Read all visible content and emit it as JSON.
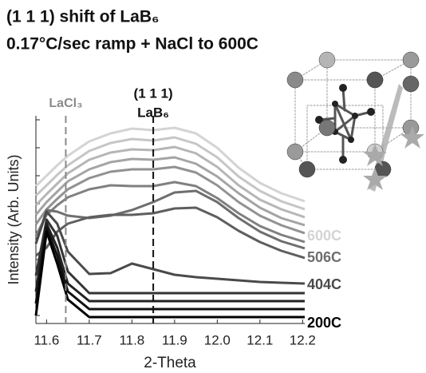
{
  "chart_data": {
    "type": "line",
    "title": [
      "(1 1 1) shift of LaB₆",
      "0.17°C/sec ramp + NaCl to 600C"
    ],
    "xlabel": "2-Theta",
    "ylabel": "Intensity (Arb. Units)",
    "x": [
      11.575,
      11.6,
      11.625,
      11.65,
      11.7,
      11.75,
      11.8,
      11.85,
      11.9,
      11.95,
      12.0,
      12.05,
      12.1,
      12.15,
      12.205
    ],
    "xlim": [
      11.575,
      12.205
    ],
    "xticks": [
      11.6,
      11.7,
      11.8,
      11.9,
      {
        "value": 12.0,
        "label": "12.0"
      },
      12.1,
      12.2
    ],
    "ylim": [
      0,
      26
    ],
    "yticks": [
      1,
      4.5,
      8,
      11.5,
      15,
      18.5,
      22,
      25.5
    ],
    "annotations": [
      {
        "x": 11.645,
        "label": "LaCl₃",
        "color": "#8a8a8a"
      },
      {
        "x": 11.85,
        "label": [
          "(1 1 1)",
          "LaB₆"
        ],
        "color": "#111111"
      }
    ],
    "series": [
      {
        "name": "600C",
        "color": "#d4d4d4",
        "values": [
          17.2,
          18.5,
          19.8,
          21,
          22.8,
          23.8,
          24.4,
          24.2,
          24.5,
          23.8,
          22,
          19.5,
          17.6,
          16.3,
          15.3
        ]
      },
      {
        "color": "#c6c6c6",
        "values": [
          16,
          17.3,
          18.6,
          19.8,
          21.6,
          22.6,
          23.1,
          22.9,
          23.3,
          22.5,
          20.8,
          18.4,
          16.6,
          15.3,
          14.3
        ]
      },
      {
        "color": "#b6b6b6",
        "values": [
          14.8,
          16.2,
          17.5,
          18.8,
          20.5,
          21.4,
          21.8,
          21.7,
          22.1,
          21.3,
          19.6,
          17.3,
          15.5,
          14.3,
          13.3
        ]
      },
      {
        "color": "#a4a4a4",
        "values": [
          13.6,
          15.2,
          16.5,
          17.8,
          19.3,
          20.2,
          20.6,
          20.5,
          20.8,
          20,
          18.4,
          16.3,
          14.5,
          13.2,
          12.3
        ]
      },
      {
        "color": "#929292",
        "values": [
          12.4,
          14.3,
          15.6,
          16.8,
          18.2,
          19,
          19.3,
          19.3,
          19.6,
          18.9,
          17.3,
          15.2,
          13.5,
          12.3,
          11.3
        ]
      },
      {
        "color": "#808080",
        "values": [
          11,
          13.6,
          14.8,
          15.8,
          16.8,
          17.3,
          17.2,
          17.2,
          17.7,
          17.2,
          15.7,
          13.8,
          12.2,
          11.1,
          10.2
        ]
      },
      {
        "name": "506C",
        "color": "#6e6e6e",
        "values": [
          10,
          14.2,
          14,
          13.5,
          13.2,
          13.5,
          14.2,
          15.2,
          16.4,
          16.6,
          15.2,
          13.2,
          11.5,
          10.3,
          9.4
        ]
      },
      {
        "color": "#5e5e5e",
        "values": [
          8.5,
          9.5,
          11.5,
          12.5,
          13.3,
          13.6,
          13.6,
          13.8,
          14.4,
          14.5,
          13.3,
          11.6,
          10.2,
          9.1,
          8.2
        ]
      },
      {
        "name": "404C",
        "color": "#4a4a4a",
        "values": [
          10,
          14,
          12.5,
          9,
          6.2,
          6.3,
          7.5,
          6.8,
          6.1,
          5.8,
          5.6,
          5.4,
          5.2,
          5.1,
          5.0
        ]
      },
      {
        "color": "#333333",
        "values": [
          6,
          13,
          11,
          6.5,
          3.8,
          3.8,
          3.8,
          3.8,
          3.8,
          3.8,
          3.8,
          3.8,
          3.8,
          3.8,
          3.8
        ]
      },
      {
        "color": "#222222",
        "values": [
          4,
          12.5,
          9.5,
          5,
          2.8,
          2.8,
          2.8,
          2.8,
          2.8,
          2.8,
          2.8,
          2.8,
          2.8,
          2.8,
          2.8
        ]
      },
      {
        "color": "#111111",
        "values": [
          2.5,
          12,
          8.5,
          4,
          1.8,
          1.8,
          1.8,
          1.8,
          1.8,
          1.8,
          1.8,
          1.8,
          1.8,
          1.8,
          1.8
        ]
      },
      {
        "name": "200C",
        "color": "#000000",
        "values": [
          1,
          11.5,
          7.5,
          3,
          0.8,
          0.8,
          0.8,
          0.8,
          0.8,
          0.8,
          0.8,
          0.8,
          0.8,
          0.8,
          0.8
        ]
      }
    ]
  }
}
